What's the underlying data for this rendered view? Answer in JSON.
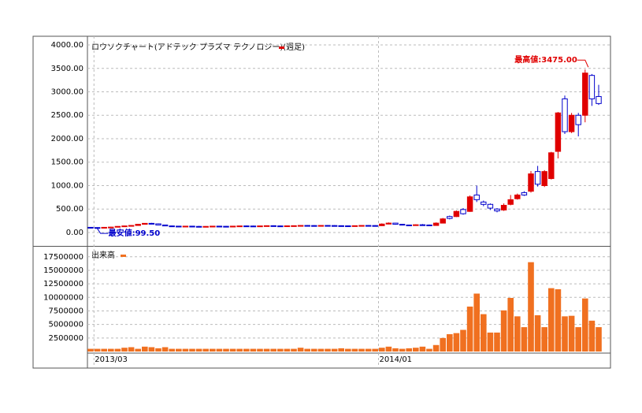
{
  "chart_data": [
    {
      "type": "candlestick",
      "title": "ロウソクチャート(アドテック プラズマ テクノロジー)(週足)",
      "legend_color": "#e00000",
      "up_color": "#e00000",
      "down_color": "#0000cc",
      "annotations": [
        "最高値:3475.00",
        "最安値:99.50"
      ],
      "categories": [
        null,
        "2013/03",
        null,
        null,
        null,
        null,
        null,
        null,
        null,
        null,
        null,
        null,
        null,
        null,
        null,
        null,
        null,
        null,
        null,
        null,
        null,
        null,
        null,
        null,
        null,
        null,
        null,
        null,
        null,
        null,
        null,
        null,
        null,
        null,
        null,
        null,
        null,
        null,
        null,
        null,
        null,
        null,
        null,
        "2014/01",
        null,
        null,
        null,
        null,
        null,
        null,
        null,
        null,
        null,
        null,
        null,
        null,
        null,
        null,
        null,
        null,
        null,
        null,
        null,
        null,
        null,
        null,
        null,
        null,
        null,
        null,
        null,
        null,
        null,
        null,
        null,
        null
      ],
      "open": [
        110,
        105,
        102,
        110,
        115,
        130,
        140,
        150,
        175,
        195,
        185,
        160,
        140,
        135,
        130,
        135,
        130,
        128,
        130,
        135,
        132,
        130,
        135,
        140,
        138,
        135,
        140,
        145,
        140,
        138,
        142,
        145,
        150,
        148,
        145,
        150,
        148,
        145,
        142,
        140,
        145,
        150,
        148,
        145,
        180,
        200,
        175,
        160,
        150,
        165,
        160,
        150,
        200,
        340,
        340,
        490,
        450,
        800,
        650,
        600,
        500,
        480,
        600,
        720,
        850,
        880,
        1300,
        1000,
        1150,
        1730,
        2850,
        2150,
        2500,
        2500,
        3350,
        2900
      ],
      "high": [
        115,
        112,
        118,
        122,
        135,
        145,
        155,
        180,
        200,
        205,
        195,
        168,
        148,
        142,
        140,
        142,
        140,
        136,
        138,
        142,
        140,
        138,
        142,
        148,
        146,
        142,
        148,
        152,
        148,
        146,
        150,
        152,
        158,
        156,
        153,
        158,
        156,
        152,
        150,
        148,
        152,
        158,
        156,
        195,
        215,
        205,
        180,
        165,
        175,
        180,
        170,
        215,
        310,
        360,
        470,
        520,
        790,
        1000,
        680,
        620,
        520,
        620,
        800,
        830,
        880,
        1310,
        1420,
        1330,
        1720,
        2570,
        2920,
        2550,
        2550,
        3475,
        3380,
        3150
      ],
      "low": [
        100,
        99.5,
        100,
        105,
        110,
        125,
        135,
        145,
        170,
        180,
        155,
        135,
        130,
        125,
        125,
        128,
        125,
        122,
        125,
        128,
        125,
        125,
        128,
        132,
        130,
        128,
        132,
        136,
        132,
        130,
        134,
        137,
        140,
        140,
        138,
        140,
        140,
        137,
        135,
        133,
        137,
        140,
        140,
        140,
        175,
        165,
        150,
        140,
        145,
        150,
        140,
        145,
        195,
        280,
        330,
        380,
        440,
        650,
        560,
        480,
        430,
        460,
        580,
        700,
        780,
        850,
        980,
        970,
        1130,
        1580,
        2100,
        2120,
        2050,
        2350,
        2700,
        2720
      ],
      "close": [
        105,
        102,
        110,
        115,
        130,
        140,
        150,
        175,
        195,
        185,
        160,
        140,
        135,
        130,
        135,
        130,
        128,
        130,
        135,
        132,
        130,
        135,
        140,
        138,
        135,
        140,
        145,
        140,
        138,
        142,
        145,
        150,
        148,
        145,
        150,
        148,
        145,
        142,
        140,
        145,
        150,
        148,
        145,
        180,
        200,
        175,
        160,
        150,
        165,
        160,
        150,
        200,
        290,
        300,
        450,
        400,
        760,
        700,
        600,
        520,
        460,
        580,
        700,
        800,
        800,
        1250,
        1030,
        1300,
        1700,
        2550,
        2150,
        2500,
        2300,
        3400,
        2850,
        2750
      ],
      "ylim": [
        -286,
        4185
      ],
      "yticks": [
        {
          "value": 0,
          "label": "0.00"
        },
        {
          "value": 500,
          "label": "500.00"
        },
        {
          "value": 1000,
          "label": "1000.00"
        },
        {
          "value": 1500,
          "label": "1500.00"
        },
        {
          "value": 2000,
          "label": "2000.00"
        },
        {
          "value": 2500,
          "label": "2500.00"
        },
        {
          "value": 3000,
          "label": "3000.00"
        },
        {
          "value": 3500,
          "label": "3500.00"
        },
        {
          "value": 4000,
          "label": "4000.00"
        }
      ]
    },
    {
      "type": "bar",
      "title": "出来高",
      "color": "#f07020",
      "values": [
        500000,
        500000,
        500000,
        500000,
        500000,
        700000,
        800000,
        500000,
        900000,
        800000,
        600000,
        800000,
        500000,
        500000,
        500000,
        500000,
        500000,
        500000,
        500000,
        500000,
        500000,
        500000,
        500000,
        500000,
        500000,
        500000,
        500000,
        500000,
        500000,
        500000,
        500000,
        700000,
        500000,
        500000,
        500000,
        500000,
        500000,
        600000,
        500000,
        500000,
        500000,
        500000,
        500000,
        700000,
        900000,
        600000,
        500000,
        600000,
        700000,
        900000,
        500000,
        1200000,
        2500000,
        3200000,
        3400000,
        4000000,
        8300000,
        10700000,
        6900000,
        3500000,
        3500000,
        7600000,
        9900000,
        6500000,
        4500000,
        16500000,
        6700000,
        4500000,
        11700000,
        11500000,
        6500000,
        6600000,
        4500000,
        9800000,
        5700000,
        4500000
      ],
      "ylim": [
        0,
        19360000
      ],
      "yticks": [
        2500000,
        5000000,
        7500000,
        10000000,
        12500000,
        15000000,
        17500000
      ]
    }
  ]
}
